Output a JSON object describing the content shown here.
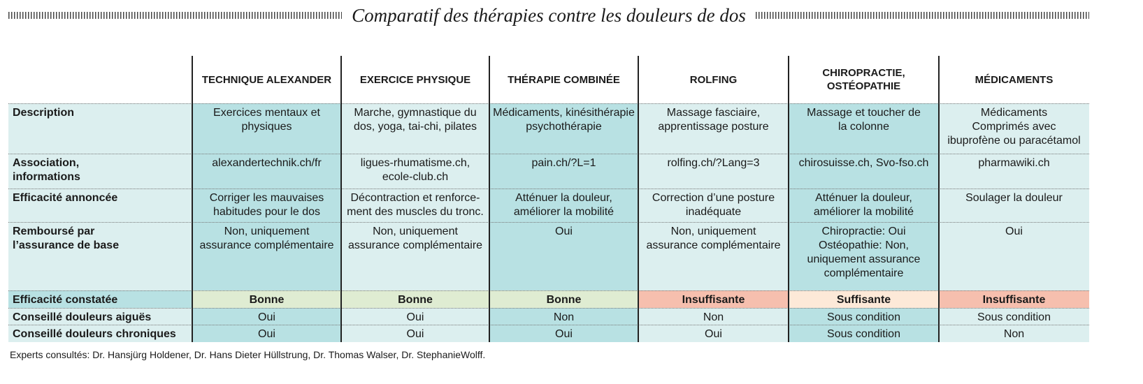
{
  "title": "Comparatif des thérapies contre les douleurs de dos",
  "table": {
    "columns": [
      [
        "TECHNIQUE ALEXANDER"
      ],
      [
        "EXERCICE PHYSIQUE"
      ],
      [
        "THÉRAPIE COMBINÉE"
      ],
      [
        "ROLFING"
      ],
      [
        "CHIROPRACTIE,",
        "OSTÉOPATHIE"
      ],
      [
        "MÉDICAMENTS"
      ]
    ],
    "rows": [
      {
        "label": [
          "Description"
        ],
        "cells": [
          [
            "Exercices mentaux et",
            "physiques"
          ],
          [
            "Marche, gymnastique du",
            "dos, yoga, tai-chi, pilates"
          ],
          [
            "Médicaments, kinésithérapie",
            "psychothérapie"
          ],
          [
            "Massage fasciaire,",
            "apprentissage posture"
          ],
          [
            "Massage et toucher de",
            "la colonne"
          ],
          [
            "Médicaments",
            "Comprimés avec",
            "ibuprofène ou paracétamol"
          ]
        ]
      },
      {
        "label": [
          "Association,",
          "informations"
        ],
        "cells": [
          [
            "alexandertechnik.ch/fr"
          ],
          [
            "ligues-rhumatisme.ch,",
            "ecole-club.ch"
          ],
          [
            "pain.ch/?L=1"
          ],
          [
            "rolfing.ch/?Lang=3"
          ],
          [
            "chirosuisse.ch, Svo-fso.ch"
          ],
          [
            "pharmawiki.ch"
          ]
        ]
      },
      {
        "label": [
          "Efficacité annoncée"
        ],
        "cells": [
          [
            "Corriger les mauvaises",
            "habitudes pour le dos"
          ],
          [
            "Décontraction et renforce-",
            "ment des muscles du tronc."
          ],
          [
            "Atténuer la douleur,",
            "améliorer la mobilité"
          ],
          [
            "Correction d’une posture",
            "inadéquate"
          ],
          [
            "Atténuer la douleur,",
            "améliorer la mobilité"
          ],
          [
            "Soulager la douleur"
          ]
        ]
      },
      {
        "label": [
          "Remboursé par",
          "l’assurance de base"
        ],
        "cells": [
          [
            "Non, uniquement",
            "assurance complémentaire"
          ],
          [
            "Non, uniquement",
            "assurance complémentaire"
          ],
          [
            "Oui"
          ],
          [
            "Non, uniquement",
            "assurance complémentaire"
          ],
          [
            "Chiropractie: Oui",
            "Ostéopathie: Non,",
            "uniquement assurance",
            "complémentaire"
          ],
          [
            "Oui"
          ]
        ]
      },
      {
        "label": [
          "Efficacité constatée"
        ],
        "cells": [
          [
            "Bonne"
          ],
          [
            "Bonne"
          ],
          [
            "Bonne"
          ],
          [
            "Insuffisante"
          ],
          [
            "Suffisante"
          ],
          [
            "Insuffisante"
          ]
        ]
      },
      {
        "label": [
          "Conseillé douleurs aiguës"
        ],
        "cells": [
          [
            "Oui"
          ],
          [
            "Oui"
          ],
          [
            "Non"
          ],
          [
            "Non"
          ],
          [
            "Sous condition"
          ],
          [
            "Sous condition"
          ]
        ]
      },
      {
        "label": [
          "Conseillé douleurs chroniques"
        ],
        "cells": [
          [
            "Oui"
          ],
          [
            "Oui"
          ],
          [
            "Oui"
          ],
          [
            "Oui"
          ],
          [
            "Sous condition"
          ],
          [
            "Non"
          ]
        ]
      }
    ]
  },
  "footnote": "Experts consultés: Dr. Hansjürg Holdener, Dr. Hans Dieter Hüllstrung, Dr. Thomas Walser, Dr. StephanieWolff."
}
